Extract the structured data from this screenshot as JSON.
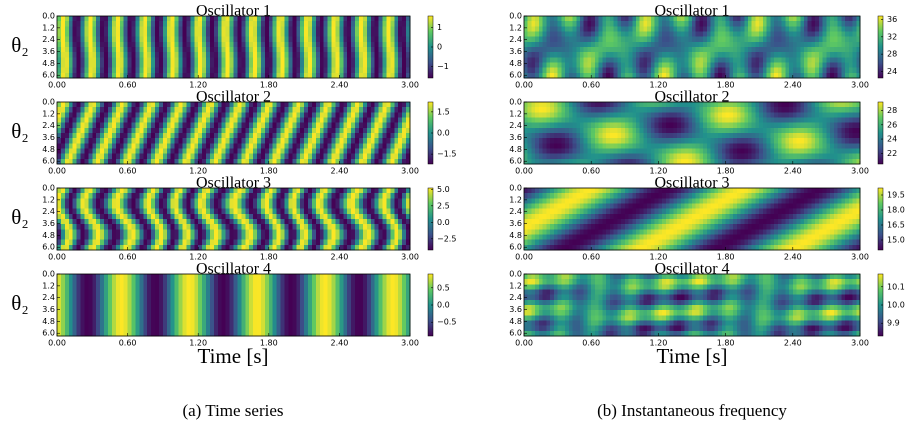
{
  "chart_data": [
    {
      "type": "heatmap",
      "title": "Oscillator 1",
      "ylabel": "θ₂",
      "xlim": [
        0,
        3
      ],
      "ylim": [
        0,
        6.28
      ],
      "xticks": [
        {
          "value": 0,
          "label": "0.00"
        },
        {
          "value": 0.6,
          "label": "0.60"
        },
        {
          "value": 1.2,
          "label": "1.20"
        },
        {
          "value": 1.8,
          "label": "1.80"
        },
        {
          "value": 2.4,
          "label": "2.40"
        },
        {
          "value": 3,
          "label": "3.00"
        }
      ],
      "yticks": [
        {
          "value": 0,
          "label": "0.0"
        },
        1.2,
        2.4,
        3.6,
        4.8,
        {
          "value": 6,
          "label": "6.0"
        }
      ],
      "clim": [
        -1.6,
        1.6
      ],
      "cticks": [
        1,
        0,
        {
          "value": -1,
          "label": "−1"
        }
      ]
    },
    {
      "type": "heatmap",
      "title": "Oscillator 2",
      "ylabel": "θ₂",
      "xlim": [
        0,
        3
      ],
      "ylim": [
        0,
        6.28
      ],
      "xticks": [
        {
          "value": 0,
          "label": "0.00"
        },
        {
          "value": 0.6,
          "label": "0.60"
        },
        {
          "value": 1.2,
          "label": "1.20"
        },
        {
          "value": 1.8,
          "label": "1.80"
        },
        {
          "value": 2.4,
          "label": "2.40"
        },
        {
          "value": 3,
          "label": "3.00"
        }
      ],
      "yticks": [
        {
          "value": 0,
          "label": "0.0"
        },
        1.2,
        2.4,
        3.6,
        4.8,
        {
          "value": 6,
          "label": "6.0"
        }
      ],
      "clim": [
        -2.2,
        2.2
      ],
      "cticks": [
        1.5,
        {
          "value": 0,
          "label": "0.0"
        },
        {
          "value": -1.5,
          "label": "−1.5"
        }
      ]
    },
    {
      "type": "heatmap",
      "title": "Oscillator 3",
      "ylabel": "θ₂",
      "xlim": [
        0,
        3
      ],
      "ylim": [
        0,
        6.28
      ],
      "xticks": [
        {
          "value": 0,
          "label": "0.00"
        },
        {
          "value": 0.6,
          "label": "0.60"
        },
        {
          "value": 1.2,
          "label": "1.20"
        },
        {
          "value": 1.8,
          "label": "1.80"
        },
        {
          "value": 2.4,
          "label": "2.40"
        },
        {
          "value": 3,
          "label": "3.00"
        }
      ],
      "yticks": [
        {
          "value": 0,
          "label": "0.0"
        },
        1.2,
        2.4,
        3.6,
        4.8,
        {
          "value": 6,
          "label": "6.0"
        }
      ],
      "clim": [
        -4.2,
        5.2
      ],
      "cticks": [
        {
          "value": 5,
          "label": "5.0"
        },
        2.5,
        {
          "value": 0,
          "label": "0.0"
        },
        {
          "value": -2.5,
          "label": "−2.5"
        }
      ]
    },
    {
      "type": "heatmap",
      "title": "Oscillator 4",
      "ylabel": "θ₂",
      "xlim": [
        0,
        3
      ],
      "ylim": [
        0,
        6.28
      ],
      "xticks": [
        {
          "value": 0,
          "label": "0.00"
        },
        {
          "value": 0.6,
          "label": "0.60"
        },
        {
          "value": 1.2,
          "label": "1.20"
        },
        {
          "value": 1.8,
          "label": "1.80"
        },
        {
          "value": 2.4,
          "label": "2.40"
        },
        {
          "value": 3,
          "label": "3.00"
        }
      ],
      "yticks": [
        {
          "value": 0,
          "label": "0.0"
        },
        1.2,
        2.4,
        3.6,
        4.8,
        {
          "value": 6,
          "label": "6.0"
        }
      ],
      "clim": [
        -0.9,
        0.9
      ],
      "cticks": [
        0.5,
        {
          "value": 0,
          "label": "0.0"
        },
        {
          "value": -0.5,
          "label": "−0.5"
        }
      ]
    },
    {
      "type": "heatmap",
      "title": "Oscillator 1",
      "xlim": [
        0,
        3
      ],
      "ylim": [
        0,
        6.28
      ],
      "xticks": [
        {
          "value": 0,
          "label": "0.00"
        },
        {
          "value": 0.6,
          "label": "0.60"
        },
        {
          "value": 1.2,
          "label": "1.20"
        },
        {
          "value": 1.8,
          "label": "1.80"
        },
        {
          "value": 2.4,
          "label": "2.40"
        },
        {
          "value": 3,
          "label": "3.00"
        }
      ],
      "yticks": [
        {
          "value": 0,
          "label": "0.0"
        },
        1.2,
        2.4,
        3.6,
        4.8,
        {
          "value": 6,
          "label": "6.0"
        }
      ],
      "clim": [
        22.5,
        36.8
      ],
      "cticks": [
        36,
        32,
        28,
        24
      ]
    },
    {
      "type": "heatmap",
      "title": "Oscillator 2",
      "xlim": [
        0,
        3
      ],
      "ylim": [
        0,
        6.28
      ],
      "xticks": [
        {
          "value": 0,
          "label": "0.00"
        },
        {
          "value": 0.6,
          "label": "0.60"
        },
        {
          "value": 1.2,
          "label": "1.20"
        },
        {
          "value": 1.8,
          "label": "1.80"
        },
        {
          "value": 2.4,
          "label": "2.40"
        },
        {
          "value": 3,
          "label": "3.00"
        }
      ],
      "yticks": [
        {
          "value": 0,
          "label": "0.0"
        },
        1.2,
        2.4,
        3.6,
        4.8,
        {
          "value": 6,
          "label": "6.0"
        }
      ],
      "clim": [
        20.5,
        29.2
      ],
      "cticks": [
        28,
        26,
        24,
        22
      ]
    },
    {
      "type": "heatmap",
      "title": "Oscillator 3",
      "xlim": [
        0,
        3
      ],
      "ylim": [
        0,
        6.28
      ],
      "xticks": [
        {
          "value": 0,
          "label": "0.00"
        },
        {
          "value": 0.6,
          "label": "0.60"
        },
        {
          "value": 1.2,
          "label": "1.20"
        },
        {
          "value": 1.8,
          "label": "1.80"
        },
        {
          "value": 2.4,
          "label": "2.40"
        },
        {
          "value": 3,
          "label": "3.00"
        }
      ],
      "yticks": [
        {
          "value": 0,
          "label": "0.0"
        },
        1.2,
        2.4,
        3.6,
        4.8,
        {
          "value": 6,
          "label": "6.0"
        }
      ],
      "clim": [
        14,
        20.2
      ],
      "cticks": [
        19.5,
        {
          "value": 18,
          "label": "18.0"
        },
        16.5,
        {
          "value": 15,
          "label": "15.0"
        }
      ]
    },
    {
      "type": "heatmap",
      "title": "Oscillator 4",
      "xlim": [
        0,
        3
      ],
      "ylim": [
        0,
        6.28
      ],
      "xticks": [
        {
          "value": 0,
          "label": "0.00"
        },
        {
          "value": 0.6,
          "label": "0.60"
        },
        {
          "value": 1.2,
          "label": "1.20"
        },
        {
          "value": 1.8,
          "label": "1.80"
        },
        {
          "value": 2.4,
          "label": "2.40"
        },
        {
          "value": 3,
          "label": "3.00"
        }
      ],
      "yticks": [
        {
          "value": 0,
          "label": "0.0"
        },
        1.2,
        2.4,
        3.6,
        4.8,
        {
          "value": 6,
          "label": "6.0"
        }
      ],
      "clim": [
        9.83,
        10.17
      ],
      "cticks": [
        10.1,
        {
          "value": 10,
          "label": "10.0"
        },
        9.9
      ]
    }
  ],
  "panels": [
    {
      "x_label": "Time [s]",
      "caption": "(a) Time series"
    },
    {
      "x_label": "Time [s]",
      "caption": "(b) Instantaneous frequency"
    }
  ]
}
